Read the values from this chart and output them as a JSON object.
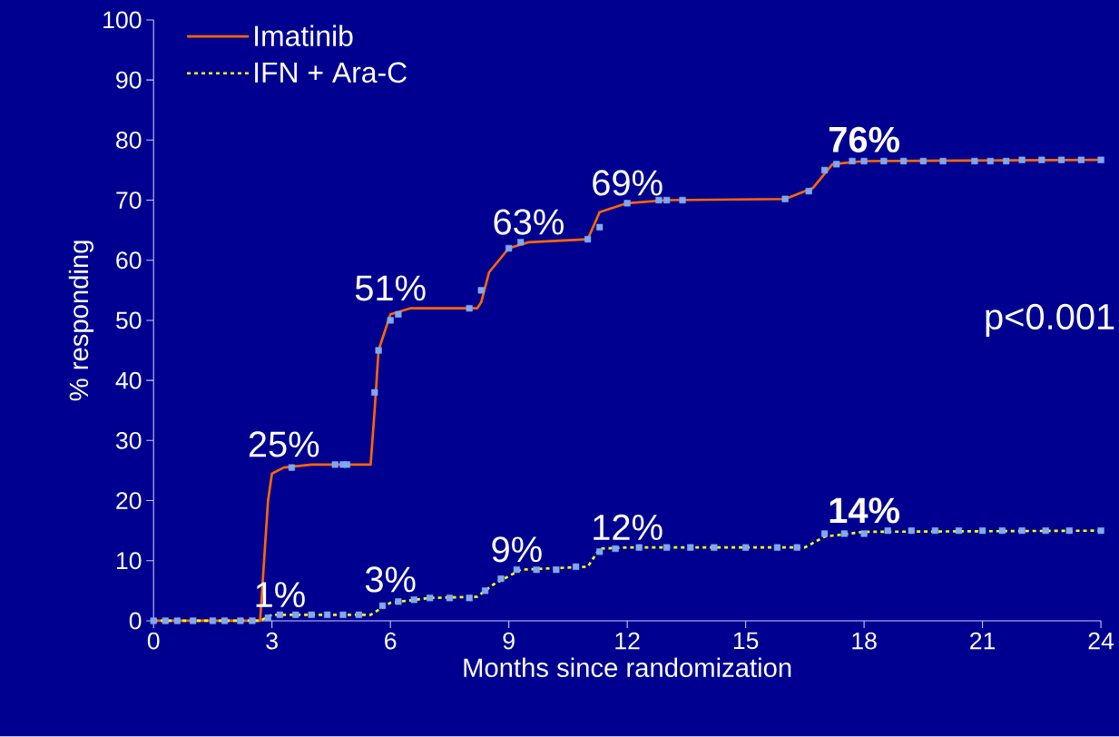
{
  "chart_data": {
    "type": "line",
    "xlabel": "Months since randomization",
    "ylabel": "% responding",
    "xlim": [
      0,
      24
    ],
    "ylim": [
      0,
      100
    ],
    "xticks": [
      0,
      3,
      6,
      9,
      12,
      15,
      18,
      21,
      24
    ],
    "yticks": [
      0,
      10,
      20,
      30,
      40,
      50,
      60,
      70,
      80,
      90,
      100
    ],
    "legend": "top left",
    "grid": false,
    "series": [
      {
        "name": "Imatinib",
        "color": "#ff6600",
        "line_style": "solid",
        "x": [
          0,
          2.7,
          2.8,
          2.9,
          3.0,
          3.3,
          4.0,
          5.5,
          5.6,
          5.7,
          5.9,
          6.0,
          6.5,
          8.2,
          8.3,
          8.5,
          9.0,
          9.5,
          11.0,
          11.3,
          12.0,
          13.0,
          16.0,
          16.7,
          17.2,
          18.0,
          24.0
        ],
        "values": [
          0,
          0,
          10,
          20,
          24.5,
          25.5,
          26,
          26,
          35,
          45,
          49,
          51,
          52,
          52,
          53,
          58,
          62,
          63,
          63.5,
          68,
          69.5,
          70,
          70.2,
          72,
          76,
          76.5,
          76.7
        ]
      },
      {
        "name": "IFN + Ara-C",
        "color": "#ffff00",
        "line_style": "dashed",
        "x": [
          0,
          2.7,
          3.0,
          5.5,
          6.0,
          7.0,
          8.2,
          8.6,
          9.3,
          11.0,
          11.3,
          12.0,
          16.5,
          17.0,
          18.0,
          24.0
        ],
        "values": [
          0,
          0,
          1,
          1,
          3,
          3.8,
          4,
          6,
          8.5,
          9,
          12,
          12.2,
          12.2,
          14,
          14.8,
          15
        ]
      },
      {
        "type": "scatter",
        "marker": "square",
        "color": "#80a8f0",
        "x": [
          3.5,
          4.6,
          4.8,
          4.9,
          5.6,
          5.7,
          6.0,
          6.2,
          8.0,
          8.3,
          9.0,
          9.3,
          11.0,
          11.3,
          12.0,
          12.8,
          13.0,
          13.4,
          16.0,
          16.6,
          17.0,
          17.3,
          17.7,
          18.0,
          18.5,
          19.0,
          19.5,
          20.0,
          20.8,
          21.2,
          21.6,
          22.0,
          22.5,
          23.0,
          23.5,
          24.0
        ],
        "values": [
          25.5,
          26,
          26,
          26,
          38,
          45,
          50,
          51,
          52,
          55,
          62,
          63,
          63.5,
          65.5,
          69.5,
          70,
          70,
          70,
          70.2,
          71.5,
          75,
          76,
          76.5,
          76.5,
          76.5,
          76.5,
          76.5,
          76.5,
          76.5,
          76.5,
          76.5,
          76.7,
          76.7,
          76.7,
          76.7,
          76.7
        ]
      },
      {
        "type": "scatter",
        "marker": "square",
        "color": "#80a8f0",
        "x": [
          0,
          0.3,
          0.6,
          1.0,
          1.5,
          1.8,
          2.2,
          2.5,
          2.9,
          3.2,
          3.6,
          4.0,
          4.4,
          4.8,
          5.2,
          5.8,
          6.2,
          6.6,
          7.0,
          7.5,
          8.0,
          8.4,
          8.8,
          9.2,
          9.7,
          10.2,
          10.7,
          11.3,
          11.7,
          12.3,
          13.0,
          13.6,
          14.2,
          15.0,
          15.8,
          16.3,
          17.0,
          17.5,
          18.0,
          18.6,
          19.2,
          19.8,
          20.4,
          21.0,
          21.5,
          22.0,
          22.6,
          23.2,
          24.0
        ],
        "values": [
          0,
          0,
          0,
          0,
          0,
          0,
          0,
          0,
          0.5,
          1,
          1,
          1,
          1,
          1,
          1,
          2.5,
          3.2,
          3.5,
          3.8,
          3.8,
          3.8,
          5,
          7,
          8.5,
          8.5,
          8.5,
          9,
          11.5,
          12,
          12.2,
          12.2,
          12.2,
          12.2,
          12.2,
          12.2,
          12.2,
          14.5,
          14.5,
          14.5,
          15,
          15,
          15,
          15,
          15,
          15,
          15,
          15,
          15,
          15
        ]
      }
    ],
    "annotations": [
      {
        "text": "25%",
        "x": 3.3,
        "y": 26
      },
      {
        "text": "51%",
        "x": 6,
        "y": 52
      },
      {
        "text": "63%",
        "x": 9.5,
        "y": 63
      },
      {
        "text": "69%",
        "x": 12,
        "y": 69.5
      },
      {
        "text": "**76%**",
        "x": 18,
        "y": 76.7
      },
      {
        "text": "1%",
        "x": 3.2,
        "y": 1
      },
      {
        "text": "3%",
        "x": 6,
        "y": 3.5
      },
      {
        "text": "9%",
        "x": 9.2,
        "y": 8.5
      },
      {
        "text": "12%",
        "x": 12,
        "y": 12.2
      },
      {
        "text": "**14%**",
        "x": 18,
        "y": 15
      },
      "p<0.001"
    ]
  }
}
